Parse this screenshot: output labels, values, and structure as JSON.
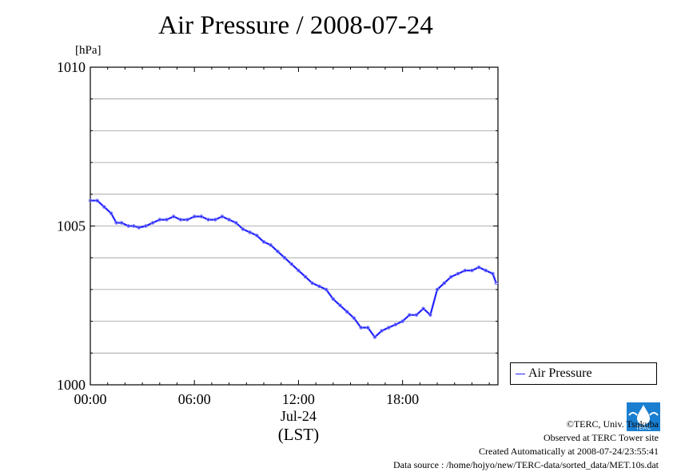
{
  "title": "Air Pressure / 2008-07-24",
  "unit": "[hPa]",
  "legend": {
    "label": "Air Pressure",
    "color": "#2222ff"
  },
  "footer": {
    "copyright": "©TERC, Univ. Tsukuba",
    "observed": "Observed at TERC Tower site",
    "created": "Created Automatically at 2008-07-24/23:55:41",
    "source": "Data source : /home/hojyo/new/TERC-data/sorted_data/MET.10s.dat"
  },
  "logo_text": "TERC",
  "chart_data": {
    "type": "line",
    "title": "Air Pressure / 2008-07-24",
    "ylabel": "[hPa]",
    "ylim": [
      1000,
      1010
    ],
    "xlim": [
      0,
      23.5
    ],
    "y_ticks": [
      "1000",
      "1005",
      "1010"
    ],
    "x_ticks": [
      {
        "x": 0,
        "label": "00:00"
      },
      {
        "x": 6,
        "label": "06:00"
      },
      {
        "x": 12,
        "label": "12:00",
        "sub": "Jul-24"
      },
      {
        "x": 18,
        "label": "18:00"
      }
    ],
    "x_axis_label": "(LST)",
    "grid": true,
    "legend_position": "right",
    "series": [
      {
        "name": "Air Pressure",
        "x": [
          0,
          0.4,
          0.8,
          1.2,
          1.5,
          1.8,
          2.2,
          2.5,
          2.8,
          3.2,
          3.6,
          4.0,
          4.4,
          4.8,
          5.2,
          5.6,
          6.0,
          6.4,
          6.8,
          7.2,
          7.6,
          8.0,
          8.4,
          8.8,
          9.2,
          9.6,
          10.0,
          10.4,
          10.8,
          11.2,
          11.6,
          12.0,
          12.4,
          12.8,
          13.2,
          13.6,
          14.0,
          14.4,
          14.8,
          15.2,
          15.6,
          16.0,
          16.4,
          16.8,
          17.2,
          17.6,
          18.0,
          18.4,
          18.8,
          19.2,
          19.6,
          20.0,
          20.4,
          20.8,
          21.2,
          21.6,
          22.0,
          22.4,
          22.8,
          23.2,
          23.4
        ],
        "y": [
          1005.8,
          1005.8,
          1005.6,
          1005.4,
          1005.1,
          1005.1,
          1005.0,
          1005.0,
          1004.95,
          1005.0,
          1005.1,
          1005.2,
          1005.2,
          1005.3,
          1005.2,
          1005.2,
          1005.3,
          1005.3,
          1005.2,
          1005.2,
          1005.3,
          1005.2,
          1005.1,
          1004.9,
          1004.8,
          1004.7,
          1004.5,
          1004.4,
          1004.2,
          1004.0,
          1003.8,
          1003.6,
          1003.4,
          1003.2,
          1003.1,
          1003.0,
          1002.7,
          1002.5,
          1002.3,
          1002.1,
          1001.8,
          1001.8,
          1001.5,
          1001.7,
          1001.8,
          1001.9,
          1002.0,
          1002.2,
          1002.2,
          1002.4,
          1002.2,
          1003.0,
          1003.2,
          1003.4,
          1003.5,
          1003.6,
          1003.6,
          1003.7,
          1003.6,
          1003.5,
          1003.2
        ]
      }
    ]
  }
}
